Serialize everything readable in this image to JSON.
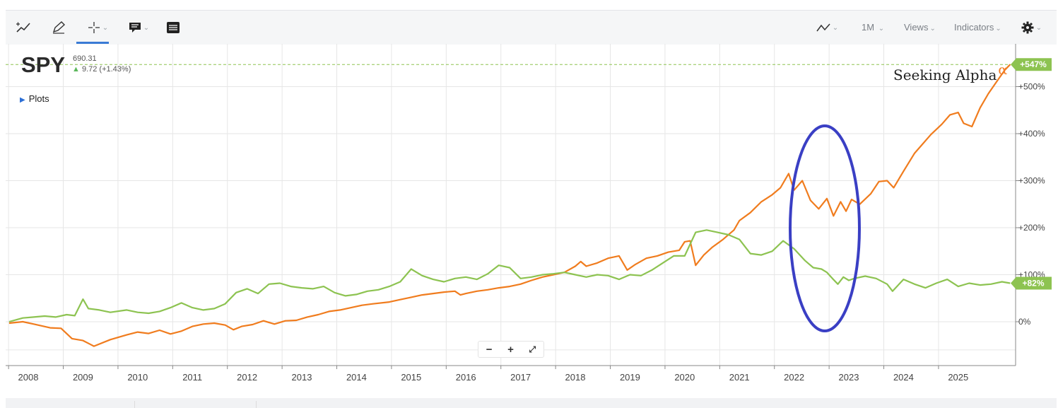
{
  "toolbar": {
    "icons": [
      "add-line-icon",
      "pencil-icon",
      "crosshair-icon",
      "comment-icon",
      "table-icon",
      "chart-type-icon",
      "gear-icon"
    ],
    "period": "1M",
    "views": "Views",
    "indicators": "Indicators"
  },
  "ticker": {
    "symbol": "SPY",
    "price": "690.31",
    "change": "9.72 (+1.43%)"
  },
  "plots_label": "Plots",
  "brand": {
    "name": "Seeking Alpha",
    "mark": "α"
  },
  "zoom": {
    "minus": "−",
    "plus": "+",
    "fit": "⤢"
  },
  "colors": {
    "orange": "#f07c1e",
    "green": "#8dc351",
    "highlight": "#3a3fc4",
    "grid": "#e6e6e6"
  },
  "chart_data": {
    "type": "line",
    "x_range": [
      2007.65,
      2025.95
    ],
    "ylim": [
      -95,
      660
    ],
    "ytick_labels": [
      "0%",
      "+100%",
      "+200%",
      "+300%",
      "+400%",
      "+500%"
    ],
    "yticks": [
      0,
      100,
      200,
      300,
      400,
      500
    ],
    "xtick_labels": [
      "2008",
      "2009",
      "2010",
      "2011",
      "2012",
      "2013",
      "2014",
      "2015",
      "2016",
      "2017",
      "2018",
      "2019",
      "2020",
      "2021",
      "2022",
      "2023",
      "2024",
      "2025"
    ],
    "grid": true,
    "reference_line": 547,
    "series": [
      {
        "color": "orange",
        "end_label": "+547%",
        "points": [
          [
            2007.65,
            -3
          ],
          [
            2007.9,
            0
          ],
          [
            2008.1,
            -5
          ],
          [
            2008.4,
            -13
          ],
          [
            2008.6,
            -14
          ],
          [
            2008.8,
            -36
          ],
          [
            2009.0,
            -40
          ],
          [
            2009.2,
            -52
          ],
          [
            2009.5,
            -38
          ],
          [
            2009.8,
            -28
          ],
          [
            2010.0,
            -22
          ],
          [
            2010.2,
            -25
          ],
          [
            2010.4,
            -18
          ],
          [
            2010.6,
            -26
          ],
          [
            2010.8,
            -20
          ],
          [
            2011.0,
            -10
          ],
          [
            2011.2,
            -5
          ],
          [
            2011.4,
            -3
          ],
          [
            2011.6,
            -7
          ],
          [
            2011.75,
            -17
          ],
          [
            2011.9,
            -10
          ],
          [
            2012.1,
            -6
          ],
          [
            2012.3,
            2
          ],
          [
            2012.5,
            -5
          ],
          [
            2012.7,
            2
          ],
          [
            2012.9,
            3
          ],
          [
            2013.1,
            10
          ],
          [
            2013.3,
            15
          ],
          [
            2013.5,
            22
          ],
          [
            2013.7,
            25
          ],
          [
            2013.9,
            30
          ],
          [
            2014.1,
            35
          ],
          [
            2014.3,
            38
          ],
          [
            2014.6,
            42
          ],
          [
            2014.8,
            47
          ],
          [
            2015.0,
            52
          ],
          [
            2015.2,
            57
          ],
          [
            2015.4,
            60
          ],
          [
            2015.6,
            63
          ],
          [
            2015.8,
            65
          ],
          [
            2015.9,
            57
          ],
          [
            2016.0,
            60
          ],
          [
            2016.2,
            65
          ],
          [
            2016.4,
            68
          ],
          [
            2016.6,
            72
          ],
          [
            2016.8,
            75
          ],
          [
            2017.0,
            80
          ],
          [
            2017.2,
            88
          ],
          [
            2017.4,
            95
          ],
          [
            2017.6,
            100
          ],
          [
            2017.8,
            105
          ],
          [
            2018.0,
            118
          ],
          [
            2018.1,
            128
          ],
          [
            2018.2,
            118
          ],
          [
            2018.4,
            125
          ],
          [
            2018.6,
            135
          ],
          [
            2018.8,
            140
          ],
          [
            2018.95,
            110
          ],
          [
            2019.1,
            122
          ],
          [
            2019.3,
            135
          ],
          [
            2019.5,
            140
          ],
          [
            2019.7,
            148
          ],
          [
            2019.9,
            152
          ],
          [
            2020.0,
            170
          ],
          [
            2020.1,
            172
          ],
          [
            2020.2,
            120
          ],
          [
            2020.35,
            142
          ],
          [
            2020.5,
            158
          ],
          [
            2020.7,
            175
          ],
          [
            2020.9,
            195
          ],
          [
            2021.0,
            215
          ],
          [
            2021.2,
            232
          ],
          [
            2021.4,
            255
          ],
          [
            2021.6,
            270
          ],
          [
            2021.75,
            285
          ],
          [
            2021.9,
            315
          ],
          [
            2022.0,
            280
          ],
          [
            2022.15,
            300
          ],
          [
            2022.3,
            258
          ],
          [
            2022.45,
            240
          ],
          [
            2022.6,
            262
          ],
          [
            2022.72,
            225
          ],
          [
            2022.85,
            255
          ],
          [
            2022.95,
            235
          ],
          [
            2023.05,
            260
          ],
          [
            2023.2,
            250
          ],
          [
            2023.4,
            272
          ],
          [
            2023.55,
            298
          ],
          [
            2023.7,
            300
          ],
          [
            2023.82,
            285
          ],
          [
            2024.0,
            320
          ],
          [
            2024.2,
            358
          ],
          [
            2024.35,
            378
          ],
          [
            2024.5,
            398
          ],
          [
            2024.7,
            420
          ],
          [
            2024.85,
            440
          ],
          [
            2025.0,
            445
          ],
          [
            2025.1,
            422
          ],
          [
            2025.25,
            415
          ],
          [
            2025.4,
            455
          ],
          [
            2025.55,
            485
          ],
          [
            2025.7,
            510
          ],
          [
            2025.85,
            535
          ],
          [
            2025.95,
            547
          ]
        ]
      },
      {
        "color": "green",
        "end_label": "+82%",
        "points": [
          [
            2007.65,
            0
          ],
          [
            2007.9,
            8
          ],
          [
            2008.1,
            10
          ],
          [
            2008.3,
            12
          ],
          [
            2008.5,
            10
          ],
          [
            2008.7,
            15
          ],
          [
            2008.85,
            13
          ],
          [
            2009.0,
            48
          ],
          [
            2009.1,
            28
          ],
          [
            2009.3,
            25
          ],
          [
            2009.5,
            20
          ],
          [
            2009.8,
            25
          ],
          [
            2010.0,
            20
          ],
          [
            2010.2,
            18
          ],
          [
            2010.4,
            22
          ],
          [
            2010.6,
            30
          ],
          [
            2010.8,
            40
          ],
          [
            2011.0,
            30
          ],
          [
            2011.2,
            25
          ],
          [
            2011.4,
            28
          ],
          [
            2011.6,
            38
          ],
          [
            2011.8,
            62
          ],
          [
            2012.0,
            70
          ],
          [
            2012.2,
            60
          ],
          [
            2012.4,
            80
          ],
          [
            2012.6,
            82
          ],
          [
            2012.8,
            75
          ],
          [
            2013.0,
            72
          ],
          [
            2013.2,
            70
          ],
          [
            2013.4,
            75
          ],
          [
            2013.6,
            62
          ],
          [
            2013.8,
            55
          ],
          [
            2014.0,
            58
          ],
          [
            2014.2,
            65
          ],
          [
            2014.4,
            68
          ],
          [
            2014.6,
            75
          ],
          [
            2014.8,
            85
          ],
          [
            2015.0,
            112
          ],
          [
            2015.2,
            98
          ],
          [
            2015.4,
            90
          ],
          [
            2015.6,
            85
          ],
          [
            2015.8,
            92
          ],
          [
            2016.0,
            95
          ],
          [
            2016.2,
            90
          ],
          [
            2016.4,
            102
          ],
          [
            2016.6,
            120
          ],
          [
            2016.8,
            115
          ],
          [
            2017.0,
            92
          ],
          [
            2017.2,
            95
          ],
          [
            2017.4,
            100
          ],
          [
            2017.6,
            102
          ],
          [
            2017.8,
            105
          ],
          [
            2018.0,
            100
          ],
          [
            2018.2,
            95
          ],
          [
            2018.4,
            100
          ],
          [
            2018.6,
            98
          ],
          [
            2018.8,
            90
          ],
          [
            2019.0,
            100
          ],
          [
            2019.2,
            98
          ],
          [
            2019.4,
            110
          ],
          [
            2019.6,
            125
          ],
          [
            2019.8,
            140
          ],
          [
            2020.0,
            140
          ],
          [
            2020.2,
            190
          ],
          [
            2020.4,
            195
          ],
          [
            2020.6,
            190
          ],
          [
            2020.8,
            185
          ],
          [
            2021.0,
            175
          ],
          [
            2021.2,
            145
          ],
          [
            2021.4,
            142
          ],
          [
            2021.6,
            150
          ],
          [
            2021.8,
            172
          ],
          [
            2022.0,
            155
          ],
          [
            2022.2,
            130
          ],
          [
            2022.35,
            115
          ],
          [
            2022.5,
            112
          ],
          [
            2022.6,
            105
          ],
          [
            2022.7,
            92
          ],
          [
            2022.8,
            80
          ],
          [
            2022.9,
            95
          ],
          [
            2023.0,
            88
          ],
          [
            2023.1,
            92
          ],
          [
            2023.3,
            97
          ],
          [
            2023.5,
            92
          ],
          [
            2023.7,
            80
          ],
          [
            2023.8,
            65
          ],
          [
            2024.0,
            90
          ],
          [
            2024.2,
            80
          ],
          [
            2024.4,
            72
          ],
          [
            2024.6,
            82
          ],
          [
            2024.8,
            90
          ],
          [
            2025.0,
            75
          ],
          [
            2025.2,
            82
          ],
          [
            2025.4,
            78
          ],
          [
            2025.6,
            80
          ],
          [
            2025.8,
            85
          ],
          [
            2025.95,
            82
          ]
        ]
      }
    ]
  }
}
